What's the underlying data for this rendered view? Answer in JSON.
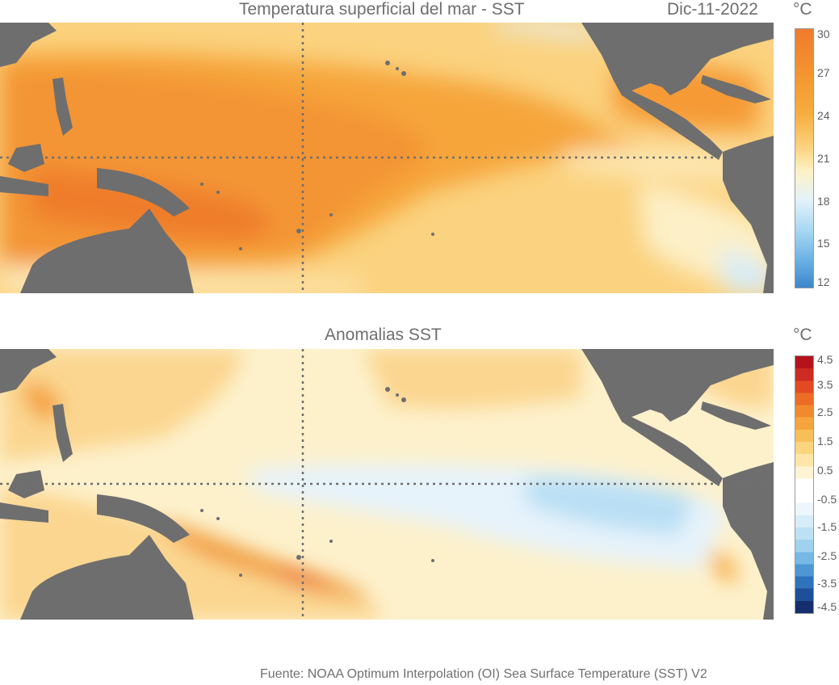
{
  "sst": {
    "title": "Temperatura superficial del mar - SST",
    "date": "Dic-11-2022",
    "unit": "°C",
    "colorbar": {
      "labels": [
        "30",
        "27",
        "24",
        "21",
        "18",
        "15",
        "12"
      ],
      "colors": [
        "#ef7a2c",
        "#f4942f",
        "#f7ad3f",
        "#fbd07a",
        "#fdf2c6",
        "#e4f2fa",
        "#a7d7f2",
        "#6db3e6",
        "#3d86cc"
      ]
    }
  },
  "anomaly": {
    "title": "Anomalias SST",
    "unit": "°C",
    "colorbar": {
      "labels": [
        "4.5",
        "3.5",
        "2.5",
        "1.5",
        "0.5",
        "-0.5",
        "-1.5",
        "-2.5",
        "-3.5",
        "-4.5"
      ],
      "colors": [
        "#b5121b",
        "#cd2a22",
        "#e24b21",
        "#ec6c25",
        "#f08a2c",
        "#f5a53d",
        "#f8bf58",
        "#fbd47e",
        "#fde6a8",
        "#fef4d4",
        "#ffffff",
        "#ffffff",
        "#ecf6fc",
        "#d6ecf8",
        "#bce1f4",
        "#9fd2ef",
        "#76b9e6",
        "#4e97d4",
        "#2f73bc",
        "#1e4f9a",
        "#152f6e"
      ]
    }
  },
  "source": "Fuente: NOAA Optimum Interpolation (OI) Sea Surface Temperature (SST) V2"
}
